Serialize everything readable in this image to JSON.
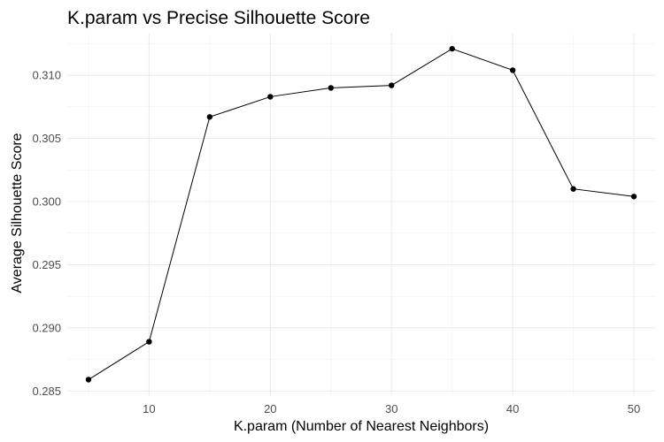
{
  "chart_data": {
    "type": "line",
    "title": "K.param vs Precise Silhouette Score",
    "xlabel": "K.param (Number of Nearest Neighbors)",
    "ylabel": "Average Silhouette Score",
    "xlim": [
      3.25,
      51.75
    ],
    "ylim": [
      0.2846,
      0.3133
    ],
    "x_ticks": [
      10,
      20,
      30,
      40,
      50
    ],
    "y_ticks": [
      0.285,
      0.29,
      0.295,
      0.3,
      0.305,
      0.31
    ],
    "y_tick_labels": [
      "0.285",
      "0.290",
      "0.295",
      "0.300",
      "0.305",
      "0.310"
    ],
    "grid": true,
    "legend": "none",
    "series": [
      {
        "x": [
          5,
          10,
          15,
          20,
          25,
          30,
          35,
          40,
          45,
          50
        ],
        "values": [
          0.2859,
          0.2889,
          0.3067,
          0.3083,
          0.309,
          0.3092,
          0.3121,
          0.3104,
          0.301,
          0.3004
        ],
        "color": "#000000"
      }
    ]
  }
}
